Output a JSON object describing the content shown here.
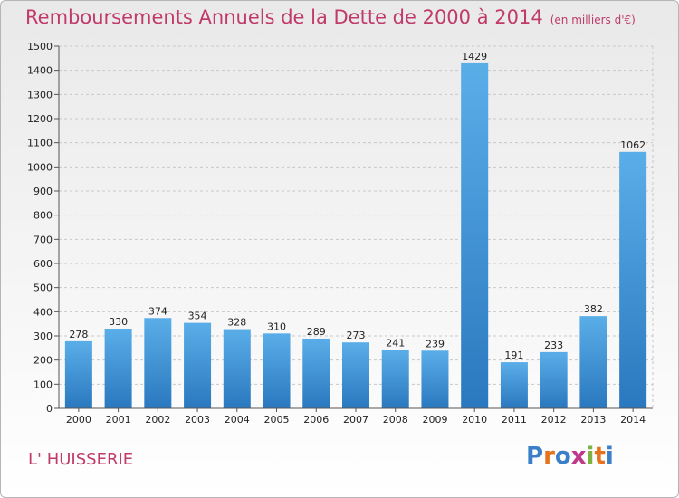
{
  "header": {
    "title": "Remboursements Annuels de la Dette de 2000 à 2014",
    "unit": "(en milliers d'€)"
  },
  "footer": {
    "commune": "L' HUISSERIE",
    "logo_text": "Proxiti",
    "logo_colors": [
      "#3a7fc8",
      "#e5731d",
      "#3a7fc8",
      "#c0398c",
      "#7cb342",
      "#e5731d",
      "#3a7fc8"
    ]
  },
  "chart_data": {
    "type": "bar",
    "categories": [
      "2000",
      "2001",
      "2002",
      "2003",
      "2004",
      "2005",
      "2006",
      "2007",
      "2008",
      "2009",
      "2010",
      "2011",
      "2012",
      "2013",
      "2014"
    ],
    "values": [
      278,
      330,
      374,
      354,
      328,
      310,
      289,
      273,
      241,
      239,
      1429,
      191,
      233,
      382,
      1062
    ],
    "data_labels": [
      "278",
      "330",
      "374",
      "354",
      "328",
      "310",
      "289",
      "273",
      "241",
      "239",
      "1429",
      "191",
      "233",
      "382",
      "1062"
    ],
    "title": "Remboursements Annuels de la Dette de 2000 à 2014",
    "unit": "(en milliers d'€)",
    "ylim": [
      0,
      1500
    ],
    "yticks": [
      0,
      100,
      200,
      300,
      400,
      500,
      600,
      700,
      800,
      900,
      1000,
      1100,
      1200,
      1300,
      1400,
      1500
    ],
    "grid": true,
    "bar_color": "#3a8fd8"
  }
}
